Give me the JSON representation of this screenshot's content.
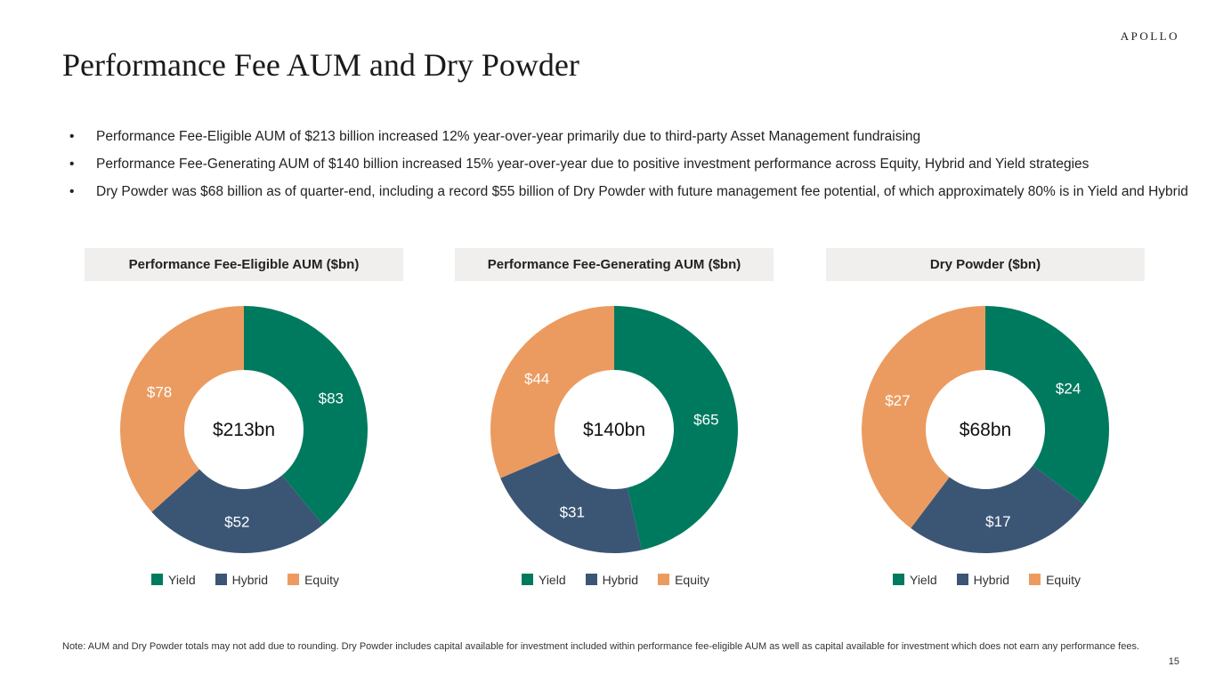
{
  "logo": "APOLLO",
  "title": "Performance Fee AUM and Dry Powder",
  "bullets": [
    "Performance Fee-Eligible AUM of $213 billion increased 12% year-over-year primarily due to third-party Asset Management fundraising",
    "Performance Fee-Generating AUM of $140 billion increased 15% year-over-year due to positive investment performance across Equity, Hybrid and Yield strategies",
    "Dry Powder was $68 billion as of quarter-end, including a record $55 billion of Dry Powder with future management fee potential, of which approximately 80% is in Yield and Hybrid"
  ],
  "colors": {
    "Yield": "#007a5e",
    "Hybrid": "#3b5675",
    "Equity": "#eb9b60"
  },
  "chart_data": [
    {
      "type": "pie",
      "title": "Performance Fee-Eligible AUM ($bn)",
      "center_label": "$213bn",
      "categories": [
        "Yield",
        "Hybrid",
        "Equity"
      ],
      "values": [
        83,
        52,
        78
      ],
      "labels": [
        "$83",
        "$52",
        "$78"
      ],
      "legend": [
        "Yield",
        "Hybrid",
        "Equity"
      ]
    },
    {
      "type": "pie",
      "title": "Performance Fee-Generating AUM ($bn)",
      "center_label": "$140bn",
      "categories": [
        "Yield",
        "Hybrid",
        "Equity"
      ],
      "values": [
        65,
        31,
        44
      ],
      "labels": [
        "$65",
        "$31",
        "$44"
      ],
      "legend": [
        "Yield",
        "Hybrid",
        "Equity"
      ]
    },
    {
      "type": "pie",
      "title": "Dry Powder ($bn)",
      "center_label": "$68bn",
      "categories": [
        "Yield",
        "Hybrid",
        "Equity"
      ],
      "values": [
        24,
        17,
        27
      ],
      "labels": [
        "$24",
        "$17",
        "$27"
      ],
      "legend": [
        "Yield",
        "Hybrid",
        "Equity"
      ]
    }
  ],
  "note": "Note: AUM and Dry Powder totals may not add due to rounding. Dry Powder includes capital available for investment included within performance fee-eligible AUM as well as capital available for investment which does not earn any performance fees.",
  "page_number": "15"
}
